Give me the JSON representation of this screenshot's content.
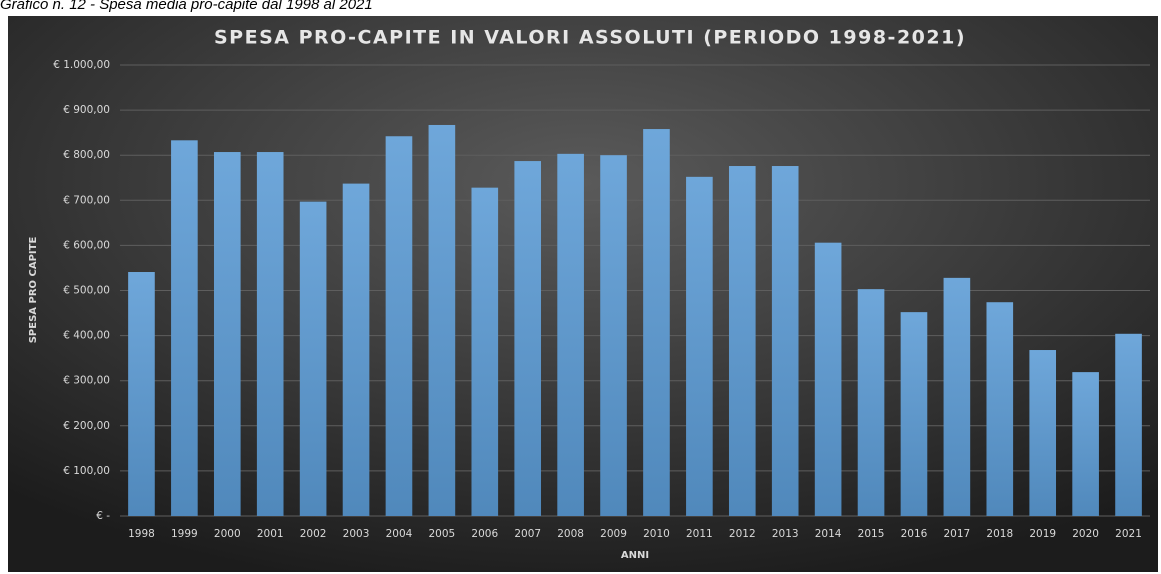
{
  "caption": "Grafico n. 12 - Spesa media pro-capite dal 1998 al 2021",
  "chart_data": {
    "type": "bar",
    "title": "SPESA PRO-CAPITE IN VALORI ASSOLUTI (PERIODO 1998-2021)",
    "x_label": "ANNI",
    "y_label": "SPESA PRO CAPITE",
    "categories": [
      "1998",
      "1999",
      "2000",
      "2001",
      "2002",
      "2003",
      "2004",
      "2005",
      "2006",
      "2007",
      "2008",
      "2009",
      "2010",
      "2011",
      "2012",
      "2013",
      "2014",
      "2015",
      "2016",
      "2017",
      "2018",
      "2019",
      "2020",
      "2021"
    ],
    "values": [
      541,
      833,
      807,
      807,
      697,
      737,
      842,
      867,
      728,
      787,
      803,
      800,
      858,
      752,
      776,
      776,
      606,
      503,
      452,
      528,
      474,
      368,
      319,
      404
    ],
    "color": "#5b9bd5",
    "ylim": [
      0,
      1000
    ],
    "yticks": [
      {
        "value": 0,
        "label": "€ -"
      },
      {
        "value": 100,
        "label": "€ 100,00"
      },
      {
        "value": 200,
        "label": "€ 200,00"
      },
      {
        "value": 300,
        "label": "€ 300,00"
      },
      {
        "value": 400,
        "label": "€ 400,00"
      },
      {
        "value": 500,
        "label": "€ 500,00"
      },
      {
        "value": 600,
        "label": "€ 600,00"
      },
      {
        "value": 700,
        "label": "€ 700,00"
      },
      {
        "value": 800,
        "label": "€ 800,00"
      },
      {
        "value": 900,
        "label": "€ 900,00"
      },
      {
        "value": 1000,
        "label": "€ 1.000,00"
      }
    ],
    "grid": true
  }
}
